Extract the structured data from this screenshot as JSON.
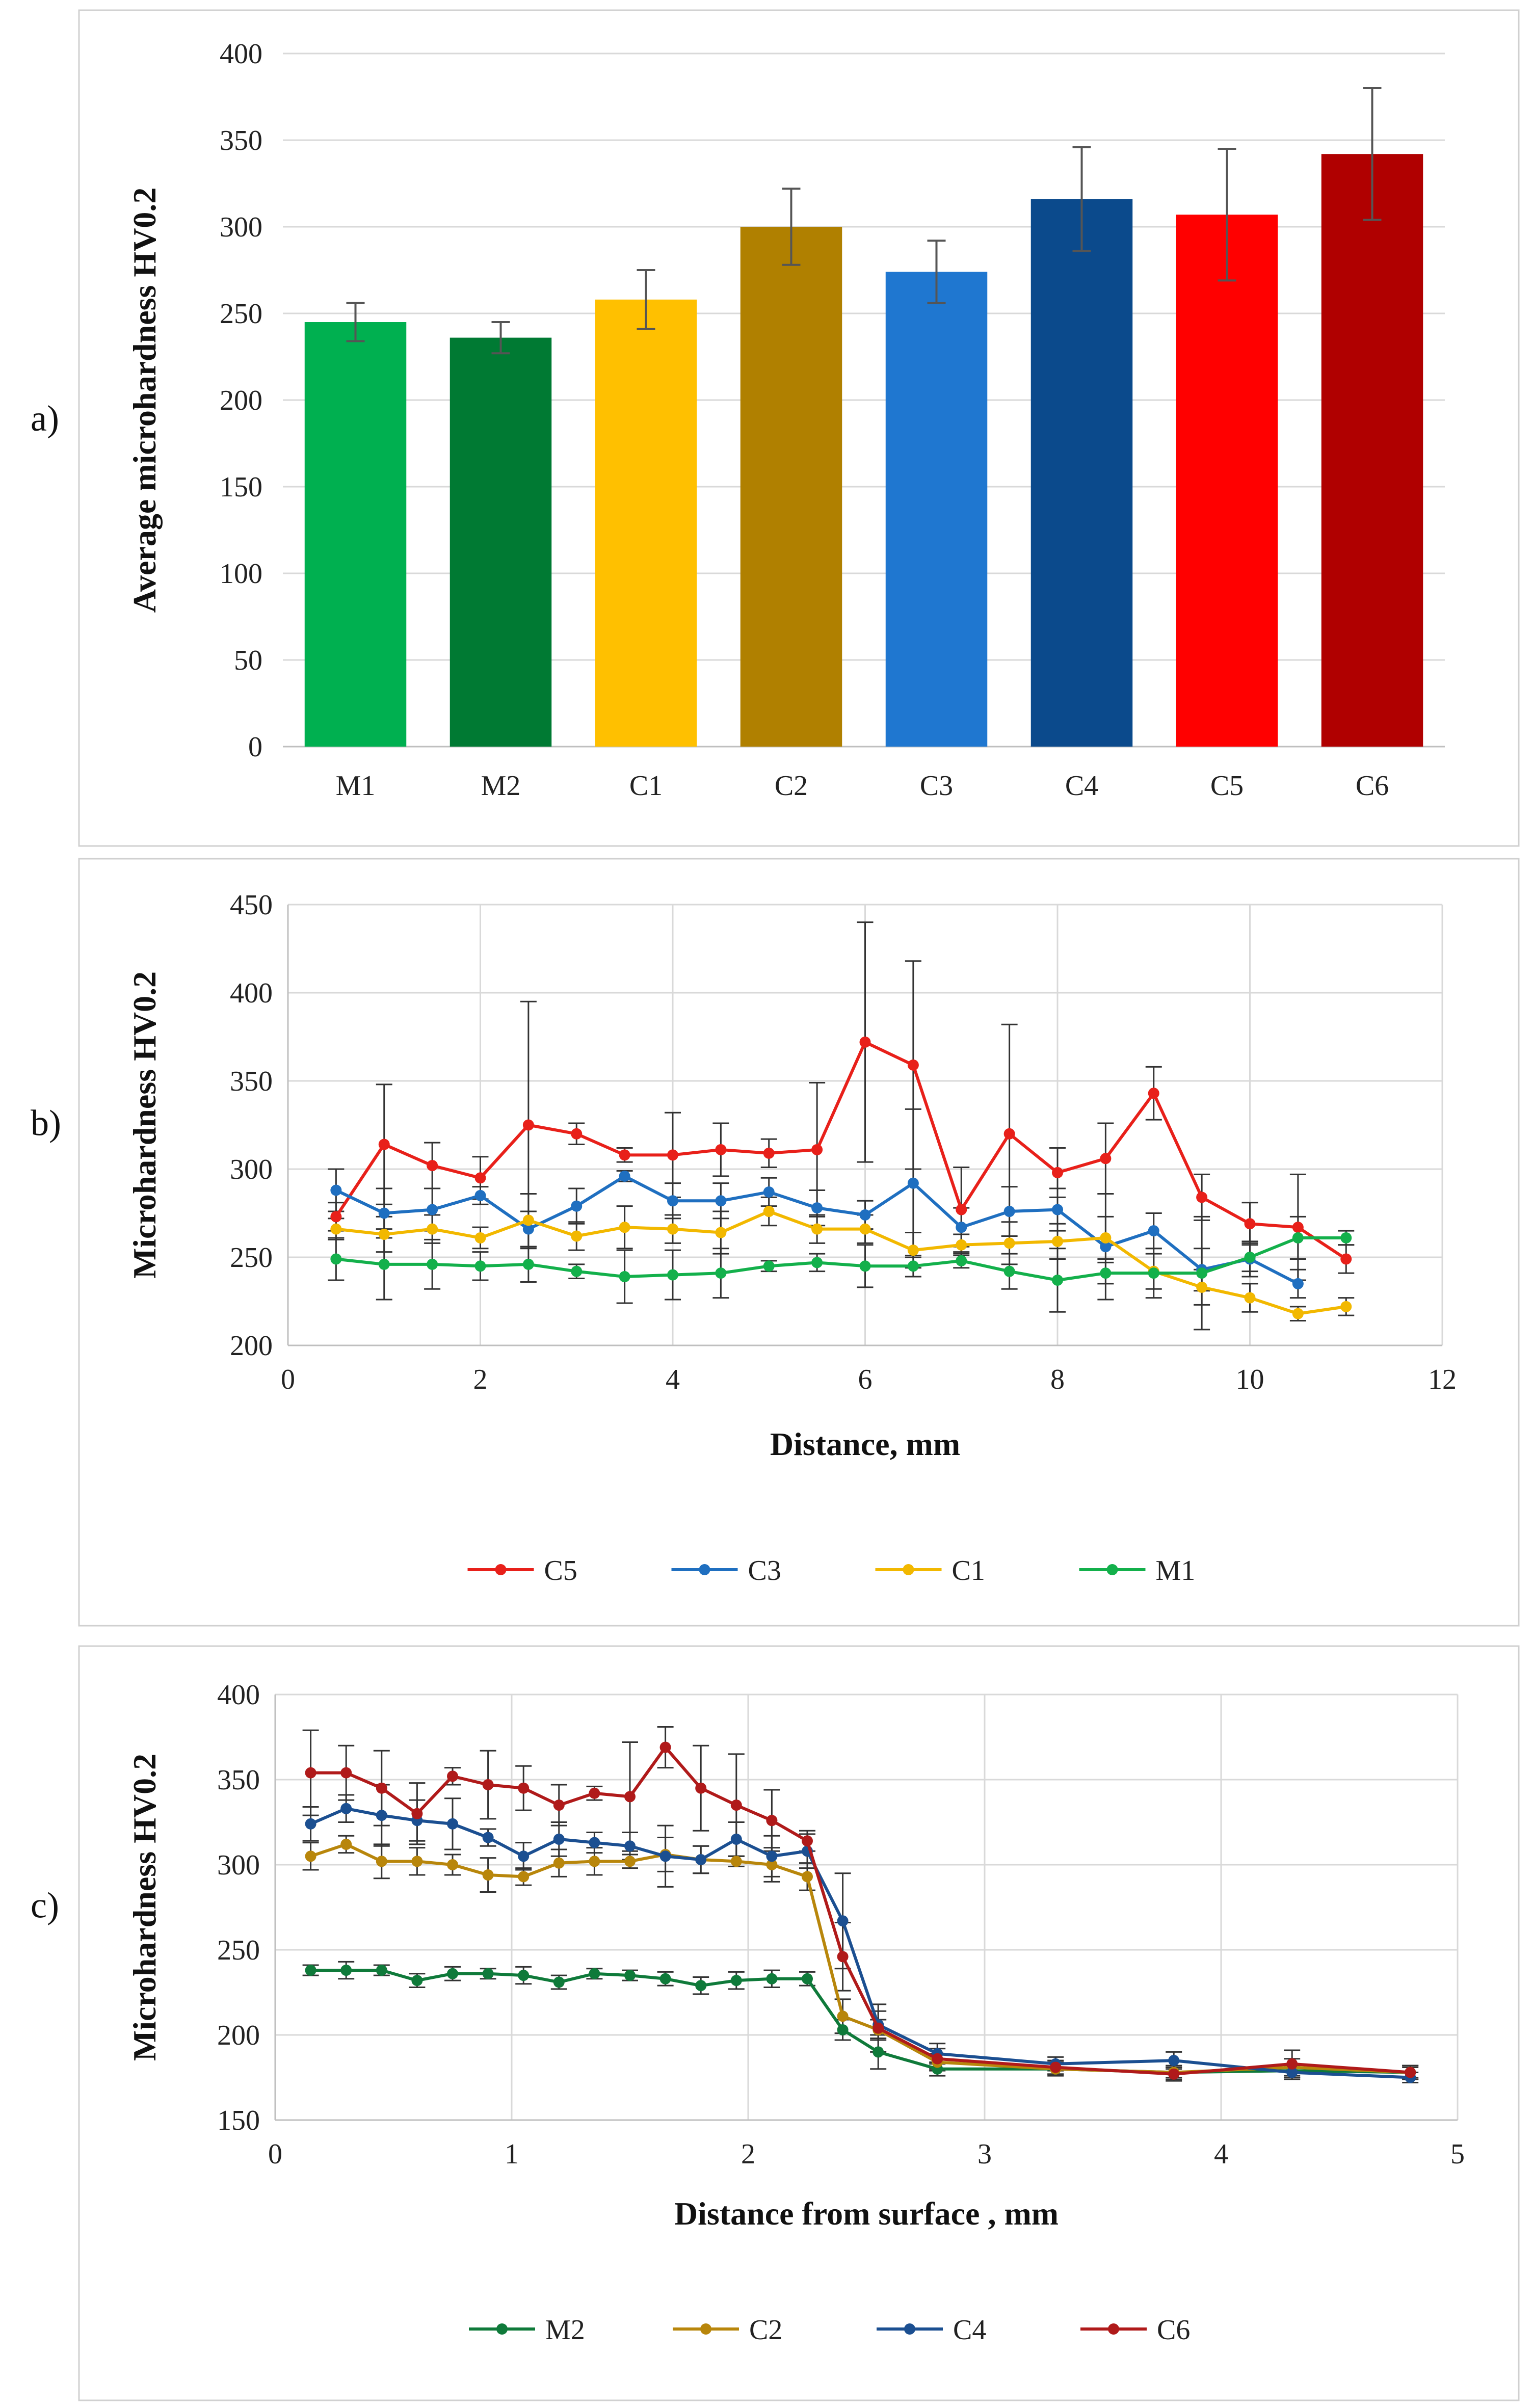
{
  "panels": [
    "a)",
    "b)",
    "c)"
  ],
  "chart_data": [
    {
      "type": "bar",
      "panel": "a)",
      "ylabel": "Average microhardness HV0.2",
      "xlabel": "",
      "ylim": [
        0,
        400
      ],
      "yticks": [
        0,
        50,
        100,
        150,
        200,
        250,
        300,
        350,
        400
      ],
      "grid": true,
      "categories": [
        "M1",
        "M2",
        "C1",
        "C2",
        "C3",
        "C4",
        "C5",
        "C6"
      ],
      "values": [
        245,
        236,
        258,
        300,
        274,
        316,
        307,
        342
      ],
      "errors": [
        11,
        9,
        17,
        22,
        18,
        30,
        38,
        38
      ],
      "colors": [
        "#00b050",
        "#007a33",
        "#ffc000",
        "#b08000",
        "#1f77d0",
        "#0b4a8c",
        "#ff0000",
        "#b00000"
      ]
    },
    {
      "type": "line",
      "panel": "b)",
      "xlabel": "Distance, mm",
      "ylabel": "Microhardness HV0.2",
      "xlim": [
        0,
        12
      ],
      "ylim": [
        200,
        450
      ],
      "xticks": [
        0,
        2,
        4,
        6,
        8,
        10,
        12
      ],
      "yticks": [
        200,
        250,
        300,
        350,
        400,
        450
      ],
      "grid": true,
      "legend": "bottom",
      "series": [
        {
          "name": "C5",
          "color": "#e8201a",
          "x": [
            0.5,
            1,
            1.5,
            2,
            2.5,
            3,
            3.5,
            4,
            4.5,
            5,
            5.5,
            6,
            6.5,
            7,
            7.5,
            8,
            8.5,
            9,
            9.5,
            10,
            10.5,
            11
          ],
          "y": [
            273,
            314,
            302,
            295,
            325,
            320,
            308,
            308,
            311,
            309,
            311,
            372,
            359,
            277,
            320,
            298,
            306,
            343,
            284,
            269,
            267,
            249
          ],
          "err": [
            8,
            34,
            13,
            12,
            70,
            6,
            4,
            24,
            15,
            8,
            38,
            68,
            59,
            24,
            62,
            14,
            20,
            15,
            13,
            12,
            30,
            8
          ]
        },
        {
          "name": "C3",
          "color": "#1f6fc0",
          "x": [
            0.5,
            1,
            1.5,
            2,
            2.5,
            3,
            3.5,
            4,
            4.5,
            5,
            5.5,
            6,
            6.5,
            7,
            7.5,
            8,
            8.5,
            9,
            9.5,
            10,
            10.5
          ],
          "y": [
            288,
            275,
            277,
            285,
            266,
            279,
            296,
            282,
            282,
            287,
            278,
            274,
            292,
            267,
            276,
            277,
            256,
            265,
            243,
            249,
            235
          ],
          "err": [
            12,
            14,
            12,
            5,
            10,
            10,
            3,
            10,
            10,
            8,
            10,
            8,
            42,
            11,
            14,
            12,
            30,
            10,
            12,
            10,
            8
          ]
        },
        {
          "name": "C1",
          "color": "#f2b800",
          "x": [
            0.5,
            1,
            1.5,
            2,
            2.5,
            3,
            3.5,
            4,
            4.5,
            5,
            5.5,
            6,
            6.5,
            7,
            7.5,
            8,
            8.5,
            9,
            9.5,
            10,
            10.5,
            11
          ],
          "y": [
            266,
            263,
            266,
            261,
            271,
            262,
            267,
            266,
            264,
            276,
            266,
            266,
            254,
            257,
            258,
            259,
            261,
            242,
            233,
            227,
            218,
            222
          ],
          "err": [
            6,
            10,
            8,
            6,
            15,
            8,
            12,
            8,
            12,
            8,
            8,
            8,
            10,
            6,
            12,
            10,
            12,
            10,
            10,
            8,
            4,
            5
          ]
        },
        {
          "name": "M1",
          "color": "#13b04b",
          "x": [
            0.5,
            1,
            1.5,
            2,
            2.5,
            3,
            3.5,
            4,
            4.5,
            5,
            5.5,
            6,
            6.5,
            7,
            7.5,
            8,
            8.5,
            9,
            9.5,
            10,
            10.5,
            11
          ],
          "y": [
            249,
            246,
            246,
            245,
            246,
            242,
            239,
            240,
            241,
            245,
            247,
            245,
            245,
            248,
            242,
            237,
            241,
            241,
            241,
            250,
            261,
            261
          ],
          "err": [
            12,
            20,
            14,
            8,
            10,
            4,
            15,
            14,
            14,
            3,
            5,
            12,
            6,
            4,
            10,
            18,
            6,
            14,
            32,
            8,
            12,
            4
          ]
        }
      ]
    },
    {
      "type": "line",
      "panel": "c)",
      "xlabel": "Distance from surface , mm",
      "ylabel": "Microhardness  HV0.2",
      "xlim": [
        0,
        5
      ],
      "ylim": [
        150,
        400
      ],
      "xticks": [
        0,
        1,
        2,
        3,
        4,
        5
      ],
      "yticks": [
        150,
        200,
        250,
        300,
        350,
        400
      ],
      "grid": true,
      "legend": "bottom",
      "series": [
        {
          "name": "M2",
          "color": "#0f7a3a",
          "x": [
            0.15,
            0.3,
            0.45,
            0.6,
            0.75,
            0.9,
            1.05,
            1.2,
            1.35,
            1.5,
            1.65,
            1.8,
            1.95,
            2.1,
            2.25,
            2.4,
            2.55,
            2.8,
            3.3,
            3.8,
            4.3,
            4.8
          ],
          "y": [
            238,
            238,
            238,
            232,
            236,
            236,
            235,
            231,
            236,
            235,
            233,
            229,
            232,
            233,
            233,
            203,
            190,
            180,
            180,
            178,
            179,
            178
          ],
          "err": [
            3,
            5,
            3,
            4,
            4,
            3,
            5,
            4,
            3,
            3,
            4,
            5,
            5,
            5,
            4,
            6,
            10,
            4,
            3,
            3,
            4,
            3
          ]
        },
        {
          "name": "C2",
          "color": "#b8860b",
          "x": [
            0.15,
            0.3,
            0.45,
            0.6,
            0.75,
            0.9,
            1.05,
            1.2,
            1.35,
            1.5,
            1.65,
            1.8,
            1.95,
            2.1,
            2.25,
            2.4,
            2.55,
            2.8,
            3.3,
            3.8,
            4.3,
            4.8
          ],
          "y": [
            305,
            312,
            302,
            302,
            300,
            294,
            293,
            301,
            302,
            302,
            306,
            303,
            302,
            300,
            293,
            211,
            203,
            184,
            180,
            178,
            181,
            178
          ],
          "err": [
            8,
            5,
            10,
            8,
            6,
            10,
            5,
            8,
            8,
            4,
            10,
            8,
            3,
            10,
            8,
            10,
            6,
            5,
            4,
            4,
            5,
            4
          ]
        },
        {
          "name": "C4",
          "color": "#1b4f91",
          "x": [
            0.15,
            0.3,
            0.45,
            0.6,
            0.75,
            0.9,
            1.05,
            1.2,
            1.35,
            1.5,
            1.65,
            1.8,
            1.95,
            2.1,
            2.25,
            2.4,
            2.55,
            2.8,
            3.3,
            3.8,
            4.3,
            4.8
          ],
          "y": [
            324,
            333,
            329,
            326,
            324,
            316,
            305,
            315,
            313,
            311,
            305,
            303,
            315,
            305,
            308,
            267,
            206,
            189,
            183,
            185,
            178,
            175
          ],
          "err": [
            10,
            8,
            18,
            12,
            15,
            5,
            8,
            10,
            6,
            8,
            18,
            8,
            10,
            12,
            10,
            28,
            8,
            6,
            4,
            5,
            4,
            3
          ]
        },
        {
          "name": "C6",
          "color": "#b01a1a",
          "x": [
            0.15,
            0.3,
            0.45,
            0.6,
            0.75,
            0.9,
            1.05,
            1.2,
            1.35,
            1.5,
            1.65,
            1.8,
            1.95,
            2.1,
            2.25,
            2.4,
            2.55,
            2.8,
            3.3,
            3.8,
            4.3,
            4.8
          ],
          "y": [
            354,
            354,
            345,
            330,
            352,
            347,
            345,
            335,
            342,
            340,
            369,
            345,
            335,
            326,
            314,
            246,
            204,
            186,
            181,
            177,
            183,
            178
          ],
          "err": [
            25,
            16,
            22,
            18,
            5,
            20,
            13,
            12,
            4,
            32,
            12,
            25,
            30,
            18,
            6,
            20,
            14,
            6,
            4,
            4,
            8,
            4
          ]
        }
      ]
    }
  ]
}
